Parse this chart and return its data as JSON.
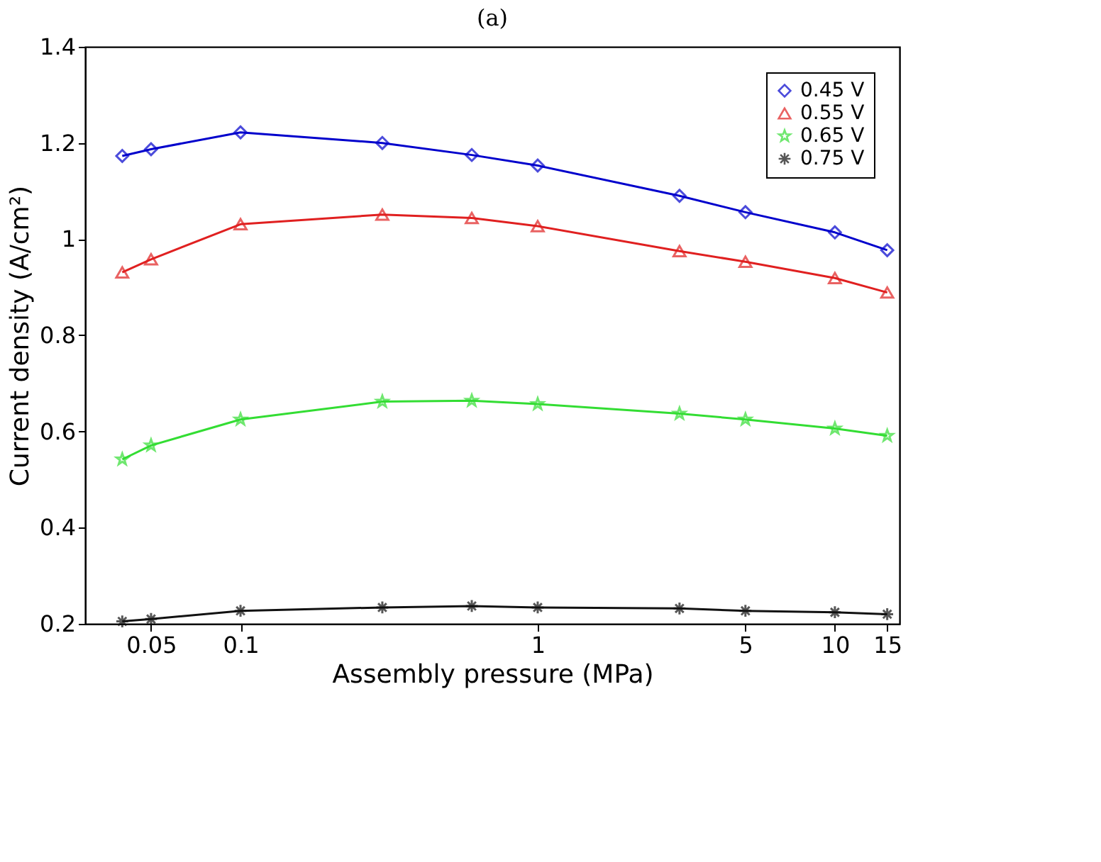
{
  "chart_data": {
    "type": "line",
    "title": "(a)",
    "xlabel": "Assembly pressure (MPa)",
    "ylabel": "Current density (A/cm²)",
    "x": [
      0.04,
      0.05,
      0.1,
      0.3,
      0.6,
      1,
      3,
      5,
      10,
      15
    ],
    "log": "x",
    "xlim": [
      0.03,
      16.5
    ],
    "xticks": [
      0.05,
      0.1,
      1,
      5,
      10,
      15
    ],
    "ylim": [
      0.2,
      1.4
    ],
    "yticks": [
      0.2,
      0.4,
      0.6,
      0.8,
      1,
      1.2,
      1.4
    ],
    "grid": false,
    "legend": "top right",
    "line_style": "solid",
    "series": [
      {
        "name": "0.45 V",
        "color": "#0000cc",
        "marker": "diamond",
        "values": [
          1.173,
          1.187,
          1.222,
          1.2,
          1.175,
          1.153,
          1.09,
          1.056,
          1.014,
          0.977
        ]
      },
      {
        "name": "0.55 V",
        "color": "#e02020",
        "marker": "triangle",
        "values": [
          0.931,
          0.958,
          1.031,
          1.051,
          1.044,
          1.027,
          0.975,
          0.953,
          0.919,
          0.889
        ]
      },
      {
        "name": "0.65 V",
        "color": "#33dd33",
        "marker": "star",
        "values": [
          0.542,
          0.571,
          0.625,
          0.662,
          0.664,
          0.657,
          0.637,
          0.625,
          0.606,
          0.591
        ]
      },
      {
        "name": "0.75 V",
        "color": "#111111",
        "marker": "cross",
        "values": [
          0.205,
          0.21,
          0.227,
          0.234,
          0.237,
          0.234,
          0.232,
          0.227,
          0.224,
          0.22
        ]
      }
    ]
  }
}
